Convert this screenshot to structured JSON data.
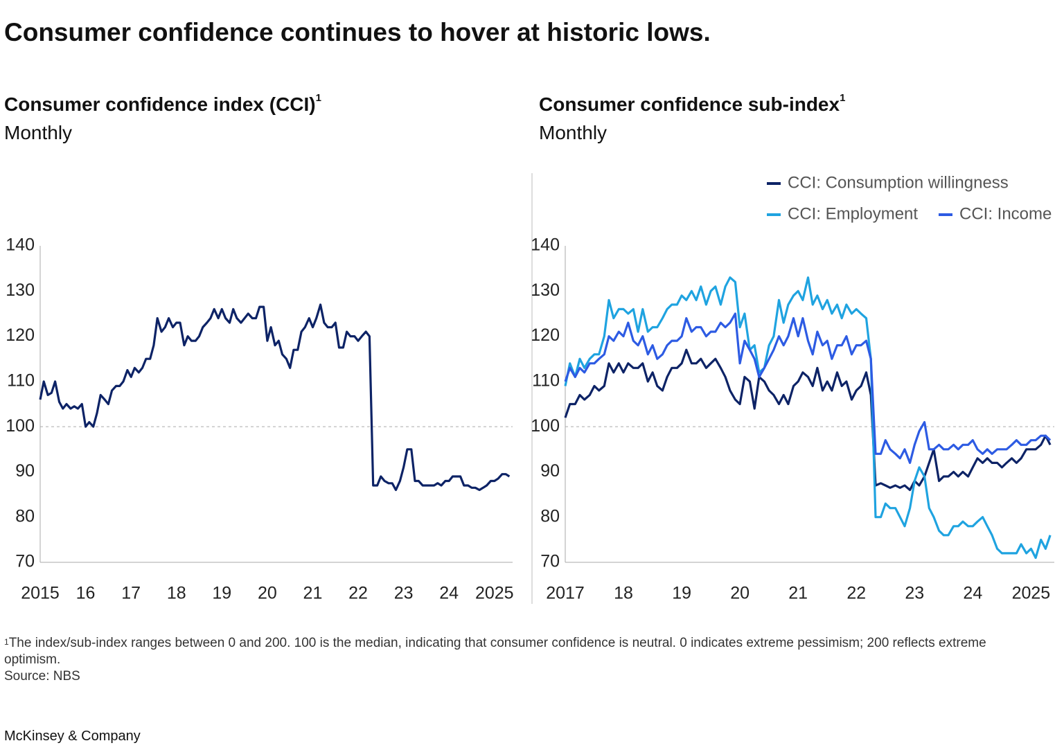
{
  "header": {
    "title": "Consumer confidence continues to hover at historic lows."
  },
  "chart_data": [
    {
      "type": "line",
      "title": "Consumer confidence index (CCI)",
      "title_note": "1",
      "subtitle": "Monthly",
      "color": "#0d2366",
      "x": [
        2015.0,
        2015.08,
        2015.17,
        2015.25,
        2015.33,
        2015.42,
        2015.5,
        2015.58,
        2015.67,
        2015.75,
        2015.83,
        2015.92,
        2016.0,
        2016.08,
        2016.17,
        2016.25,
        2016.33,
        2016.42,
        2016.5,
        2016.58,
        2016.67,
        2016.75,
        2016.83,
        2016.92,
        2017.0,
        2017.08,
        2017.17,
        2017.25,
        2017.33,
        2017.42,
        2017.5,
        2017.58,
        2017.67,
        2017.75,
        2017.83,
        2017.92,
        2018.0,
        2018.08,
        2018.17,
        2018.25,
        2018.33,
        2018.42,
        2018.5,
        2018.58,
        2018.67,
        2018.75,
        2018.83,
        2018.92,
        2019.0,
        2019.08,
        2019.17,
        2019.25,
        2019.33,
        2019.42,
        2019.5,
        2019.58,
        2019.67,
        2019.75,
        2019.83,
        2019.92,
        2020.0,
        2020.08,
        2020.17,
        2020.25,
        2020.33,
        2020.42,
        2020.5,
        2020.58,
        2020.67,
        2020.75,
        2020.83,
        2020.92,
        2021.0,
        2021.08,
        2021.17,
        2021.25,
        2021.33,
        2021.42,
        2021.5,
        2021.58,
        2021.67,
        2021.75,
        2021.83,
        2021.92,
        2022.0,
        2022.08,
        2022.17,
        2022.25,
        2022.33,
        2022.42,
        2022.5,
        2022.58,
        2022.67,
        2022.75,
        2022.83,
        2022.92,
        2023.0,
        2023.08,
        2023.17,
        2023.25,
        2023.33,
        2023.42,
        2023.5,
        2023.58,
        2023.67,
        2023.75,
        2023.83,
        2023.92,
        2024.0,
        2024.08,
        2024.17,
        2024.25,
        2024.33,
        2024.42,
        2024.5,
        2024.58,
        2024.67,
        2024.75,
        2024.83,
        2024.92,
        2025.0,
        2025.08,
        2025.17,
        2025.25,
        2025.33
      ],
      "values": [
        106,
        110,
        107,
        107.5,
        110,
        105.5,
        104,
        105,
        104,
        104.5,
        104,
        105,
        100,
        101,
        100,
        103,
        107,
        106,
        105,
        108,
        109,
        109,
        110,
        112.5,
        111,
        113,
        112,
        113,
        115,
        115,
        118,
        124,
        121,
        122,
        124,
        122,
        123,
        123,
        118,
        120,
        119,
        119,
        120,
        122,
        123,
        124,
        126,
        124,
        126,
        124,
        123,
        126,
        124,
        123,
        124,
        125,
        124,
        124,
        126.5,
        126.5,
        119,
        122,
        118,
        119,
        116,
        115,
        113,
        117,
        117,
        121,
        122,
        124,
        122,
        124,
        127,
        123,
        122,
        122,
        123,
        117.5,
        117.5,
        121,
        120,
        120,
        119,
        120,
        121,
        120,
        87,
        87,
        89,
        88,
        87.5,
        87.5,
        86,
        88,
        91,
        95,
        95,
        88,
        88,
        87,
        87,
        87,
        87,
        87.5,
        87,
        88,
        88,
        89,
        89,
        89,
        87,
        87,
        86.5,
        86.5,
        86,
        86.5,
        87,
        88,
        88,
        88.5,
        89.5,
        89.5,
        89
      ],
      "xlim": [
        2015,
        2025.4
      ],
      "xticks": [
        2015,
        {
          "value": 2016,
          "label": "16"
        },
        {
          "value": 2017,
          "label": "17"
        },
        {
          "value": 2018,
          "label": "18"
        },
        {
          "value": 2019,
          "label": "19"
        },
        {
          "value": 2020,
          "label": "20"
        },
        {
          "value": 2021,
          "label": "21"
        },
        {
          "value": 2022,
          "label": "22"
        },
        {
          "value": 2023,
          "label": "23"
        },
        {
          "value": 2024,
          "label": "24"
        },
        2025
      ],
      "ylim": [
        70,
        140
      ],
      "yticks": [
        70,
        80,
        90,
        100,
        110,
        120,
        130,
        140
      ],
      "hline": 100
    },
    {
      "type": "line",
      "title": "Consumer confidence sub-index",
      "title_note": "1",
      "subtitle": "Monthly",
      "legend": "top-right",
      "x": [
        2017.0,
        2017.08,
        2017.17,
        2017.25,
        2017.33,
        2017.42,
        2017.5,
        2017.58,
        2017.67,
        2017.75,
        2017.83,
        2017.92,
        2018.0,
        2018.08,
        2018.17,
        2018.25,
        2018.33,
        2018.42,
        2018.5,
        2018.58,
        2018.67,
        2018.75,
        2018.83,
        2018.92,
        2019.0,
        2019.08,
        2019.17,
        2019.25,
        2019.33,
        2019.42,
        2019.5,
        2019.58,
        2019.67,
        2019.75,
        2019.83,
        2019.92,
        2020.0,
        2020.08,
        2020.17,
        2020.25,
        2020.33,
        2020.42,
        2020.5,
        2020.58,
        2020.67,
        2020.75,
        2020.83,
        2020.92,
        2021.0,
        2021.08,
        2021.17,
        2021.25,
        2021.33,
        2021.42,
        2021.5,
        2021.58,
        2021.67,
        2021.75,
        2021.83,
        2021.92,
        2022.0,
        2022.08,
        2022.17,
        2022.25,
        2022.33,
        2022.42,
        2022.5,
        2022.58,
        2022.67,
        2022.75,
        2022.83,
        2022.92,
        2023.0,
        2023.08,
        2023.17,
        2023.25,
        2023.33,
        2023.42,
        2023.5,
        2023.58,
        2023.67,
        2023.75,
        2023.83,
        2023.92,
        2024.0,
        2024.08,
        2024.17,
        2024.25,
        2024.33,
        2024.42,
        2024.5,
        2024.58,
        2024.67,
        2024.75,
        2024.83,
        2024.92,
        2025.0,
        2025.08,
        2025.17,
        2025.25,
        2025.33
      ],
      "series": [
        {
          "name": "CCI: Consumption willingness",
          "color": "#0d2366",
          "values": [
            102,
            105,
            105,
            107,
            106,
            107,
            109,
            108,
            109,
            114,
            112,
            114,
            112,
            114,
            113,
            113,
            114,
            110,
            112,
            109,
            108,
            111,
            113,
            113,
            114,
            117,
            114,
            114,
            115,
            113,
            114,
            115,
            113,
            111,
            108,
            106,
            105,
            111,
            110,
            104,
            111,
            110,
            108,
            107,
            105,
            107,
            105,
            109,
            110,
            112,
            111,
            109,
            113,
            108,
            110,
            108,
            112,
            109,
            110,
            106,
            108,
            109,
            112,
            107,
            87,
            87.5,
            87,
            86.5,
            87,
            86.5,
            87,
            86,
            88,
            87,
            89,
            92,
            95,
            88,
            89,
            89,
            90,
            89,
            90,
            89,
            91,
            93,
            92,
            93,
            92,
            92,
            91,
            92,
            93,
            92,
            93,
            95,
            95,
            95,
            96,
            98,
            96
          ]
        },
        {
          "name": "CCI: Employment",
          "color": "#1fa3e0",
          "values": [
            109,
            114,
            111,
            115,
            113,
            115,
            116,
            116,
            120,
            128,
            124,
            126,
            126,
            125,
            126,
            121,
            126,
            121,
            122,
            122,
            124,
            126,
            127,
            127,
            129,
            128,
            130,
            128,
            131,
            127,
            130,
            131,
            127,
            131,
            133,
            132,
            122,
            125,
            117,
            118,
            112,
            113,
            118,
            120,
            128,
            123,
            127,
            129,
            130,
            128,
            133,
            127,
            129,
            126,
            128,
            125,
            127,
            124,
            127,
            125,
            126,
            125,
            124,
            115,
            80,
            80,
            83,
            82,
            82,
            80,
            78,
            82,
            88,
            91,
            89,
            82,
            80,
            77,
            76,
            76,
            78,
            78,
            79,
            78,
            78,
            79,
            80,
            78,
            76,
            73,
            72,
            72,
            72,
            72,
            74,
            72,
            73,
            71,
            75,
            73,
            76
          ]
        },
        {
          "name": "CCI: Income",
          "color": "#2d5be3",
          "values": [
            110,
            113,
            111,
            113,
            112,
            114,
            114,
            115,
            116,
            120,
            119,
            121,
            120,
            123,
            119,
            118,
            120,
            116,
            118,
            115,
            116,
            118,
            119,
            119,
            120,
            124,
            121,
            122,
            122,
            120,
            121,
            121,
            123,
            122,
            123,
            125,
            114,
            119,
            117,
            115,
            111,
            113,
            115,
            117,
            120,
            118,
            120,
            124,
            120,
            124,
            119,
            116,
            121,
            118,
            119,
            115,
            118,
            118,
            120,
            116,
            118,
            118,
            119,
            115,
            94,
            94,
            97,
            95,
            94,
            93,
            95,
            92,
            96,
            99,
            101,
            95,
            95,
            96,
            95,
            95,
            96,
            95,
            96,
            96,
            97,
            95,
            94,
            95,
            94,
            95,
            95,
            95,
            96,
            97,
            96,
            96,
            97,
            97,
            98,
            98,
            97
          ]
        }
      ],
      "xlim": [
        2017,
        2025.4
      ],
      "xticks": [
        2017,
        {
          "value": 2018,
          "label": "18"
        },
        {
          "value": 2019,
          "label": "19"
        },
        {
          "value": 2020,
          "label": "20"
        },
        {
          "value": 2021,
          "label": "21"
        },
        {
          "value": 2022,
          "label": "22"
        },
        {
          "value": 2023,
          "label": "23"
        },
        {
          "value": 2024,
          "label": "24"
        },
        2025
      ],
      "ylim": [
        70,
        140
      ],
      "yticks": [
        70,
        80,
        90,
        100,
        110,
        120,
        130,
        140
      ],
      "hline": 100
    }
  ],
  "footnote": {
    "marker": "1",
    "text": "The index/sub-index ranges between 0 and 200. 100 is the median, indicating that consumer confidence is neutral. 0 indicates extreme pessimism; 200 reflects extreme optimism.",
    "source": "Source: NBS"
  },
  "brand": "McKinsey & Company"
}
